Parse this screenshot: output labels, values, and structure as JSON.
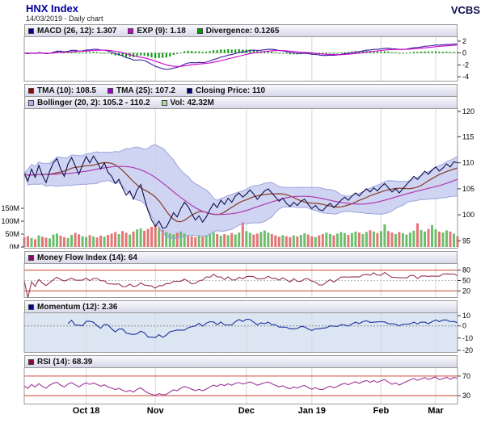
{
  "header": {
    "title": "HNX Index",
    "subtitle": "14/03/2019 - Daily chart",
    "brand": "VCBS"
  },
  "panels": {
    "macd": {
      "legend": [
        {
          "label": "MACD (26, 12): 1.307",
          "color": "#000099"
        },
        {
          "label": "EXP (9): 1.18",
          "color": "#cc00cc"
        },
        {
          "label": "Divergence: 0.1265",
          "color": "#009900"
        }
      ],
      "ticks": [
        2,
        0,
        -2,
        -4
      ]
    },
    "main": {
      "legend_row1": [
        {
          "label": "TMA (10): 108.5",
          "color": "#990000"
        },
        {
          "label": "TMA (25): 107.2",
          "color": "#9900cc"
        },
        {
          "label": "Closing Price: 110",
          "color": "#000066"
        }
      ],
      "legend_row2": [
        {
          "label": "Bollinger (20, 2): 105.2 - 110.2",
          "color": "#aab6e8"
        },
        {
          "label": "Vol: 42.32M",
          "color": "#aade9c"
        }
      ],
      "price_ticks": [
        120,
        115,
        110,
        105,
        100,
        95
      ],
      "volume_ticks": [
        "150M",
        "100M",
        "50M",
        "0M"
      ]
    },
    "mfi": {
      "legend": [
        {
          "label": "Money Flow Index (14): 64",
          "color": "#990066"
        }
      ],
      "ticks": [
        80,
        50,
        20
      ],
      "guides": [
        80,
        20
      ]
    },
    "momentum": {
      "legend": [
        {
          "label": "Momentum (12): 2.36",
          "color": "#000099"
        }
      ],
      "ticks": [
        10,
        0,
        -10,
        -20
      ]
    },
    "rsi": {
      "legend": [
        {
          "label": "RSI (14): 68.39",
          "color": "#990033"
        }
      ],
      "ticks": [
        70,
        30
      ],
      "guides": [
        70,
        30
      ]
    }
  },
  "chart_data": {
    "type": "line",
    "title": "HNX Index - 14/03/2019 - Daily chart",
    "x_axis": {
      "labels": [
        "Oct 18",
        "Nov",
        "Dec",
        "Jan 19",
        "Feb",
        "Mar"
      ],
      "label_indices": [
        17,
        36,
        61,
        79,
        98,
        113
      ]
    },
    "y_axis": {
      "price_range": [
        95,
        120
      ],
      "volume_range_m": [
        0,
        150
      ]
    },
    "close": [
      108.0,
      106.5,
      108.8,
      107.2,
      109.5,
      107.6,
      106.2,
      108.4,
      110.0,
      110.8,
      108.8,
      107.4,
      109.8,
      111.0,
      109.4,
      107.8,
      109.6,
      111.2,
      110.0,
      111.3,
      110.2,
      108.8,
      110.0,
      108.2,
      107.4,
      106.0,
      106.8,
      105.2,
      103.8,
      104.6,
      103.0,
      104.8,
      105.8,
      103.2,
      100.8,
      99.0,
      97.8,
      98.8,
      97.4,
      97.6,
      99.0,
      100.4,
      99.6,
      101.2,
      102.4,
      101.6,
      100.2,
      99.0,
      99.8,
      98.6,
      99.6,
      101.0,
      102.2,
      101.4,
      102.8,
      102.0,
      103.2,
      102.4,
      103.6,
      104.2,
      103.4,
      104.0,
      104.8,
      104.0,
      103.0,
      103.8,
      104.6,
      105.0,
      104.2,
      103.4,
      102.6,
      103.2,
      102.2,
      101.6,
      102.4,
      101.8,
      102.6,
      103.0,
      102.0,
      101.2,
      101.8,
      101.0,
      100.8,
      101.6,
      102.2,
      101.4,
      102.0,
      102.8,
      103.4,
      102.8,
      103.6,
      104.2,
      103.6,
      104.4,
      105.0,
      104.4,
      105.2,
      104.6,
      105.4,
      106.0,
      105.2,
      104.4,
      105.0,
      104.2,
      105.0,
      105.8,
      106.6,
      107.4,
      106.8,
      107.6,
      108.4,
      107.8,
      108.6,
      109.2,
      108.4,
      109.0,
      109.8,
      109.2,
      110.2,
      110.0
    ],
    "volume_m": [
      38,
      42,
      35,
      30,
      45,
      40,
      36,
      33,
      48,
      52,
      44,
      38,
      35,
      47,
      55,
      49,
      42,
      39,
      46,
      41,
      37,
      44,
      40,
      47,
      52,
      58,
      50,
      62,
      55,
      48,
      60,
      68,
      72,
      63,
      70,
      78,
      85,
      76,
      66,
      58,
      52,
      48,
      55,
      60,
      52,
      46,
      42,
      38,
      45,
      40,
      46,
      52,
      58,
      50,
      44,
      50,
      46,
      54,
      48,
      56,
      95,
      62,
      55,
      48,
      52,
      58,
      64,
      56,
      50,
      45,
      40,
      46,
      42,
      38,
      45,
      41,
      47,
      53,
      48,
      42,
      38,
      45,
      50,
      56,
      50,
      45,
      52,
      58,
      54,
      47,
      54,
      60,
      56,
      50,
      58,
      65,
      60,
      54,
      62,
      88,
      62,
      56,
      50,
      58,
      54,
      48,
      56,
      63,
      92,
      66,
      60,
      70,
      85,
      68,
      60,
      56,
      64,
      60,
      52,
      42
    ],
    "indicators": {
      "macd": {
        "fast": 26,
        "slow": 12,
        "signal": 9,
        "value": 1.307,
        "exp9": 1.18,
        "divergence": 0.1265
      },
      "tma10": 108.5,
      "tma25": 107.2,
      "closing_price": 110,
      "bollinger_20_2": [
        105.2,
        110.2
      ],
      "volume": "42.32M",
      "money_flow_index_14": 64,
      "momentum_12": 2.36,
      "rsi_14": 68.39
    },
    "colors": {
      "grid": "#d6d6e0",
      "frame": "#999999",
      "macd_line": "#3a1a9e",
      "macd_signal": "#cc00cc",
      "macd_hist": "#009900",
      "price": "#10104e",
      "tma10": "#8b3a26",
      "tma25": "#b13ab1",
      "bollinger_fill": "#c6ccee",
      "bollinger_edge": "#9aa4dd",
      "vol_up": "#5cb85c",
      "vol_down": "#e06666",
      "mfi_line": "#993355",
      "momentum_line": "#1a339e",
      "momentum_bg": "#dce6f2",
      "rsi_line": "#a03398",
      "rsi_over": "#e84444",
      "rsi_under": "#4444dd",
      "guide_red": "#cc4433",
      "accent_title": "#0000a0"
    }
  }
}
